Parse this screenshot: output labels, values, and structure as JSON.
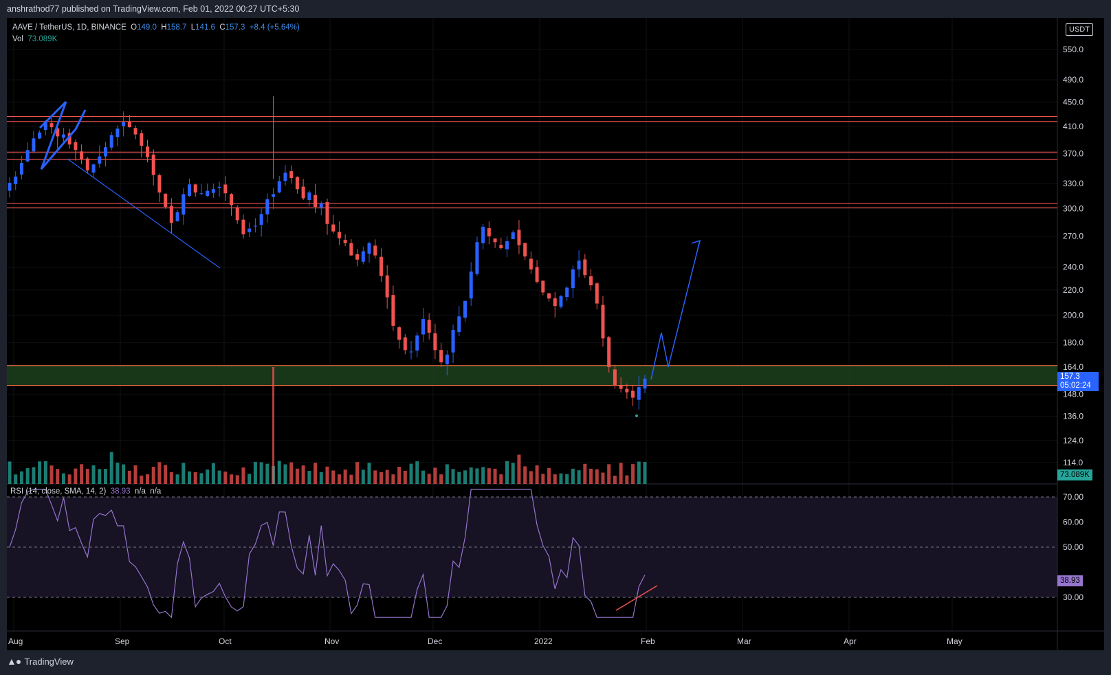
{
  "header": {
    "publisher": "anshrathod77 published on TradingView.com, Feb 01, 2022 00:27 UTC+5:30"
  },
  "legend": {
    "symbol": "AAVE / TetherUS, 1D, BINANCE",
    "o_label": "O",
    "o": "149.0",
    "h_label": "H",
    "h": "158.7",
    "l_label": "L",
    "l": "141.6",
    "c_label": "C",
    "c": "157.3",
    "change": "+8.4 (+5.64%)",
    "vol_label": "Vol",
    "vol": "73.089K",
    "rsi_label": "RSI (14, close, SMA, 14, 2)",
    "rsi_value": "38.93",
    "rsi_na1": "n/a",
    "rsi_na2": "n/a"
  },
  "currency_button": "USDT",
  "price_tag": {
    "price": "157.3",
    "countdown": "05:02:24"
  },
  "vol_tag": "73.089K",
  "rsi_tag": "38.93",
  "footer": {
    "brand": "TradingView"
  },
  "colors": {
    "up": "#2962ff",
    "down": "#ef5350",
    "vol_up": "#26a69a",
    "vol_down": "#ef5350",
    "rsi": "#9575cd",
    "level": "#ef5350",
    "zone": "#1b3d1b",
    "drawing": "#2962ff"
  },
  "chart_data": {
    "type": "candlestick",
    "symbol": "AAVE / TetherUS",
    "interval": "1D",
    "exchange": "BINANCE",
    "price_axis_scale": "log",
    "price_ticks": [
      "550.0",
      "490.0",
      "450.0",
      "410.0",
      "370.0",
      "330.0",
      "300.0",
      "270.0",
      "240.0",
      "220.0",
      "200.0",
      "180.0",
      "164.0",
      "148.0",
      "136.0",
      "124.0",
      "114.0"
    ],
    "time_ticks": [
      "Aug",
      "Sep",
      "Oct",
      "Nov",
      "Dec",
      "2022",
      "Feb",
      "Mar",
      "Apr",
      "May"
    ],
    "rsi_ticks": [
      "70.00",
      "60.00",
      "50.00",
      "30.00"
    ],
    "horizontal_levels": [
      426,
      418,
      372,
      362,
      306,
      301
    ],
    "support_zone": [
      153,
      165
    ],
    "closes_approx": [
      331,
      339,
      357,
      375,
      392,
      401,
      418,
      409,
      395,
      398,
      383,
      375,
      362,
      347,
      355,
      366,
      379,
      397,
      407,
      417,
      409,
      398,
      381,
      365,
      341,
      319,
      302,
      284,
      296,
      317,
      329,
      319,
      318,
      321,
      323,
      326,
      318,
      304,
      287,
      272,
      278,
      281,
      294,
      311,
      317,
      333,
      344,
      337,
      323,
      312,
      319,
      302,
      306,
      283,
      275,
      268,
      263,
      251,
      247,
      255,
      263,
      251,
      232,
      214,
      192,
      182,
      175,
      174,
      185,
      197,
      187,
      175,
      167,
      172,
      189,
      199,
      211,
      236,
      264,
      280,
      270,
      264,
      258,
      265,
      274,
      261,
      250,
      238,
      227,
      218,
      213,
      207,
      215,
      222,
      238,
      246,
      233,
      224,
      209,
      183,
      164,
      153,
      151,
      149,
      146,
      152,
      157
    ],
    "rsi_last": 38.93,
    "volume_last": "73.089K"
  }
}
